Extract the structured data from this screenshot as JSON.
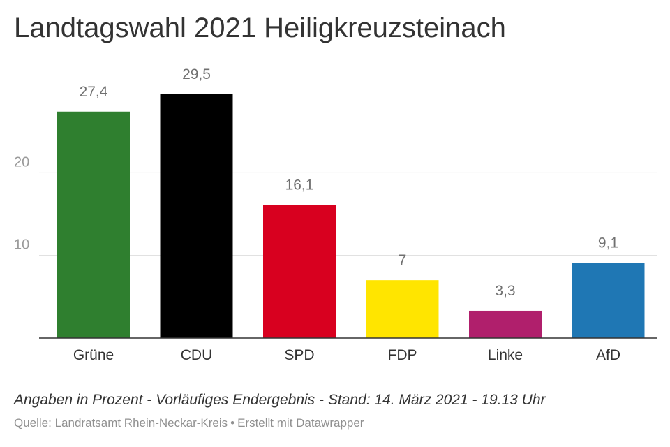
{
  "title": "Landtagswahl 2021 Heiligkreuzsteinach",
  "note": "Angaben in Prozent - Vorläufiges Endergebnis - Stand: 14. März 2021 - 19.13 Uhr",
  "source": {
    "text": "Quelle: Landratsamt Rhein-Neckar-Kreis",
    "separator": "•",
    "credit": "Erstellt mit Datawrapper"
  },
  "chart_data": {
    "type": "bar",
    "title": "Landtagswahl 2021 Heiligkreuzsteinach",
    "xlabel": "",
    "ylabel": "",
    "categories": [
      "Grüne",
      "CDU",
      "SPD",
      "FDP",
      "Linke",
      "AfD"
    ],
    "values": [
      27.4,
      29.5,
      16.1,
      7,
      3.3,
      9.1
    ],
    "value_labels": [
      "27,4",
      "29,5",
      "16,1",
      "7",
      "3,3",
      "9,1"
    ],
    "colors": [
      "#2f7f2f",
      "#000000",
      "#d8001f",
      "#ffe500",
      "#b01f6c",
      "#1f77b4"
    ],
    "yticks": [
      10,
      20
    ],
    "ytick_labels": [
      "10",
      "20"
    ],
    "ylim": [
      0,
      30
    ],
    "grid": true,
    "legend": "none"
  }
}
